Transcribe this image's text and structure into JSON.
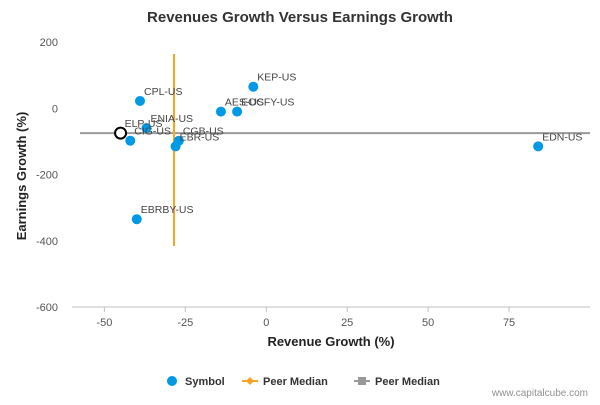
{
  "chart_data": {
    "type": "scatter",
    "title": "Revenues Growth Versus Earnings Growth",
    "xlabel": "Revenue Growth (%)",
    "ylabel": "Earnings Growth (%)",
    "xlim": [
      -60,
      100
    ],
    "ylim": [
      -600,
      200
    ],
    "xticks": [
      -50,
      -25,
      0,
      25,
      50,
      75
    ],
    "yticks": [
      200,
      0,
      -200,
      -400,
      -600
    ],
    "grid": false,
    "legend_position": "bottom",
    "colors": {
      "symbol": "#0099e6",
      "peer_median_revenue": "#f5a623",
      "peer_median_earnings": "#999999",
      "highlight_outline": "#000000"
    },
    "peer_median_revenue_growth": -28.5,
    "peer_median_earnings_growth": -75,
    "highlighted": {
      "x": -45,
      "y": -75
    },
    "points": [
      {
        "label": "CPL-US",
        "x": -39,
        "y": 22
      },
      {
        "label": "KEP-US",
        "x": -4,
        "y": 65
      },
      {
        "label": "AES-US",
        "x": -14,
        "y": -10
      },
      {
        "label": "EOCFY-US",
        "x": -9,
        "y": -10
      },
      {
        "label": "ENIA-US",
        "x": -37,
        "y": -60
      },
      {
        "label": "ELP-US",
        "x": -45,
        "y": -75
      },
      {
        "label": "CIG-US",
        "x": -42,
        "y": -98
      },
      {
        "label": "CGB-US",
        "x": -27,
        "y": -98
      },
      {
        "label": "EBR-US",
        "x": -28,
        "y": -115
      },
      {
        "label": "EBRBY-US",
        "x": -40,
        "y": -335
      },
      {
        "label": "EDN-US",
        "x": 84,
        "y": -115
      }
    ],
    "legend": [
      {
        "label": "Symbol",
        "kind": "circle"
      },
      {
        "label": "Peer Median",
        "kind": "diamond"
      },
      {
        "label": "Peer Median",
        "kind": "square"
      }
    ]
  },
  "footer": {
    "credit": "www.capitalcube.com"
  }
}
